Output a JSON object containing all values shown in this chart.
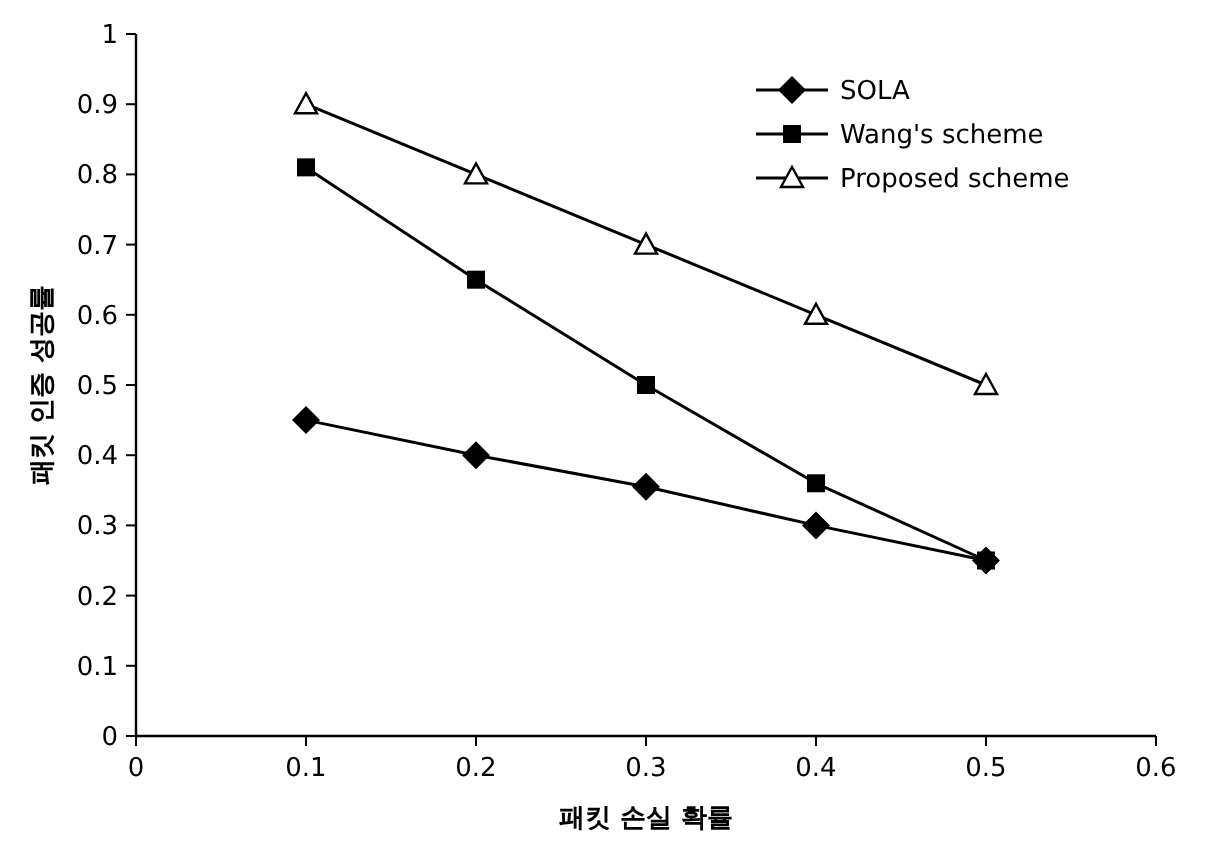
{
  "chart_data": {
    "type": "line",
    "xlabel": "패킷 손실 확률",
    "ylabel": "패킷 인증 성공률",
    "x": [
      0.1,
      0.2,
      0.3,
      0.4,
      0.5
    ],
    "xlim": [
      0,
      0.6
    ],
    "xticks": [
      0,
      0.1,
      0.2,
      0.3,
      0.4,
      0.5,
      0.6
    ],
    "ylim": [
      0,
      1
    ],
    "yticks": [
      0,
      0.1,
      0.2,
      0.3,
      0.4,
      0.5,
      0.6,
      0.7,
      0.8,
      0.9,
      1
    ],
    "grid": false,
    "legend": "top right",
    "line_style": "solid",
    "series": [
      {
        "name": "SOLA",
        "color": "#000000",
        "marker": "diamond",
        "values": [
          0.45,
          0.4,
          0.355,
          0.3,
          0.25
        ]
      },
      {
        "name": "Wang's scheme",
        "color": "#000000",
        "marker": "square",
        "values": [
          0.81,
          0.65,
          0.5,
          0.36,
          0.25
        ]
      },
      {
        "name": "Proposed scheme",
        "color": "#000000",
        "marker": "triangle",
        "values": [
          0.9,
          0.8,
          0.7,
          0.6,
          0.5
        ]
      }
    ]
  }
}
